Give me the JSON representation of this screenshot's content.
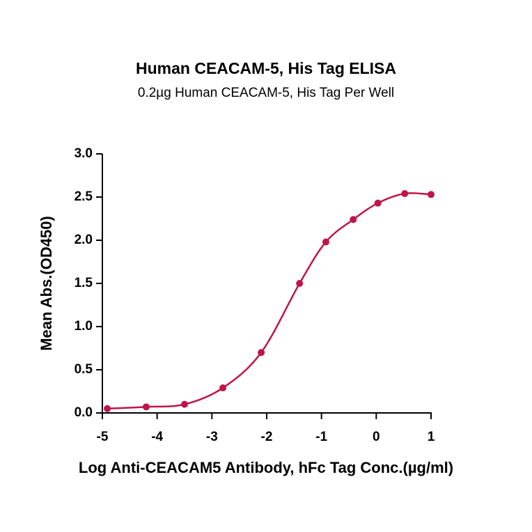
{
  "chart_data": {
    "type": "scatter",
    "title": "Human CEACAM-5, His Tag ELISA",
    "subtitle": "0.2µg Human CEACAM-5, His Tag Per Well",
    "x_label": "Log Anti-CEACAM5 Antibody, hFc Tag Conc.(µg/ml)",
    "y_label": "Mean Abs.(OD450)",
    "x": [
      -4.91,
      -4.2,
      -3.5,
      -2.8,
      -2.1,
      -1.4,
      -0.92,
      -0.42,
      0.03,
      0.52,
      1.0
    ],
    "values": [
      0.05,
      0.07,
      0.1,
      0.29,
      0.7,
      1.5,
      1.98,
      2.24,
      2.43,
      2.54,
      2.53
    ],
    "color": "#c0144a",
    "smooth_line": true,
    "xlim": [
      -5,
      1
    ],
    "xticks": [
      -5,
      -4,
      -3,
      -2,
      -1,
      0,
      1
    ],
    "ylim": [
      0,
      3
    ],
    "yticks": [
      {
        "value": 0,
        "label": "0.0"
      },
      0.5,
      {
        "value": 1,
        "label": "1.0"
      },
      1.5,
      {
        "value": 2,
        "label": "2.0"
      },
      2.5,
      {
        "value": 3,
        "label": "3.0"
      }
    ]
  }
}
